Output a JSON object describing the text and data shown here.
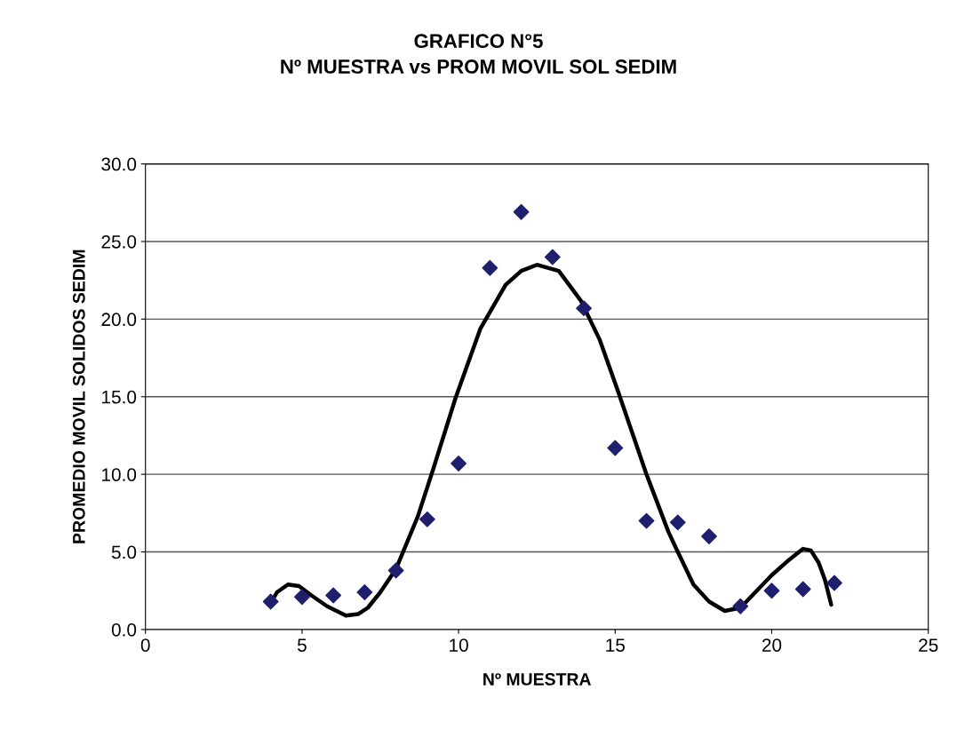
{
  "chart_data": {
    "type": "scatter",
    "title": "GRAFICO N°5\nNº MUESTRA vs PROM MOVIL SOL SEDIM",
    "xlabel": "Nº MUESTRA",
    "ylabel": "PROMEDIO MOVIL SOLIDOS SEDIM",
    "series": [
      {
        "color": "#1f1f6e",
        "marker": "diamond",
        "x": [
          4,
          5,
          6,
          7,
          8,
          9,
          10,
          11,
          12,
          13,
          14,
          15,
          16,
          17,
          18,
          19,
          20,
          21,
          22
        ],
        "values": [
          1.8,
          2.1,
          2.2,
          2.4,
          3.8,
          7.1,
          10.7,
          23.3,
          26.9,
          24.0,
          20.7,
          11.7,
          7.0,
          6.9,
          6.0,
          1.5,
          2.5,
          2.6,
          3.0
        ]
      },
      {
        "type": "line",
        "color": "#000000",
        "marker": "none",
        "line_style": "solid",
        "x": [
          4.0,
          4.2,
          4.55,
          4.9,
          5.3,
          5.8,
          6.4,
          6.8,
          7.1,
          7.5,
          8.0,
          8.7,
          9.2,
          9.9,
          10.7,
          11.5,
          12.0,
          12.5,
          13.2,
          13.9,
          14.5,
          15.1,
          16.0,
          16.7,
          17.0,
          17.5,
          18.0,
          18.5,
          19.0,
          20.0,
          20.5,
          21.0,
          21.25,
          21.5,
          21.7,
          21.9
        ],
        "values": [
          1.7,
          2.4,
          2.9,
          2.8,
          2.2,
          1.5,
          0.9,
          1.0,
          1.4,
          2.4,
          3.9,
          7.3,
          10.4,
          14.9,
          19.4,
          22.2,
          23.1,
          23.5,
          23.1,
          21.2,
          18.7,
          15.3,
          10.0,
          6.3,
          5.0,
          2.9,
          1.8,
          1.2,
          1.4,
          3.5,
          4.4,
          5.2,
          5.1,
          4.3,
          3.2,
          1.6
        ]
      }
    ],
    "xlim": [
      0,
      25
    ],
    "xticks": [
      0,
      5,
      10,
      15,
      20,
      25
    ],
    "ylim": [
      0,
      30
    ],
    "yticks": [
      {
        "value": 0,
        "label": "0.0"
      },
      {
        "value": 5,
        "label": "5.0"
      },
      {
        "value": 10,
        "label": "10.0"
      },
      {
        "value": 15,
        "label": "15.0"
      },
      {
        "value": 20,
        "label": "20.0"
      },
      {
        "value": 25,
        "label": "25.0"
      },
      {
        "value": 30,
        "label": "30.0"
      }
    ],
    "grid": "y",
    "legend": false
  }
}
